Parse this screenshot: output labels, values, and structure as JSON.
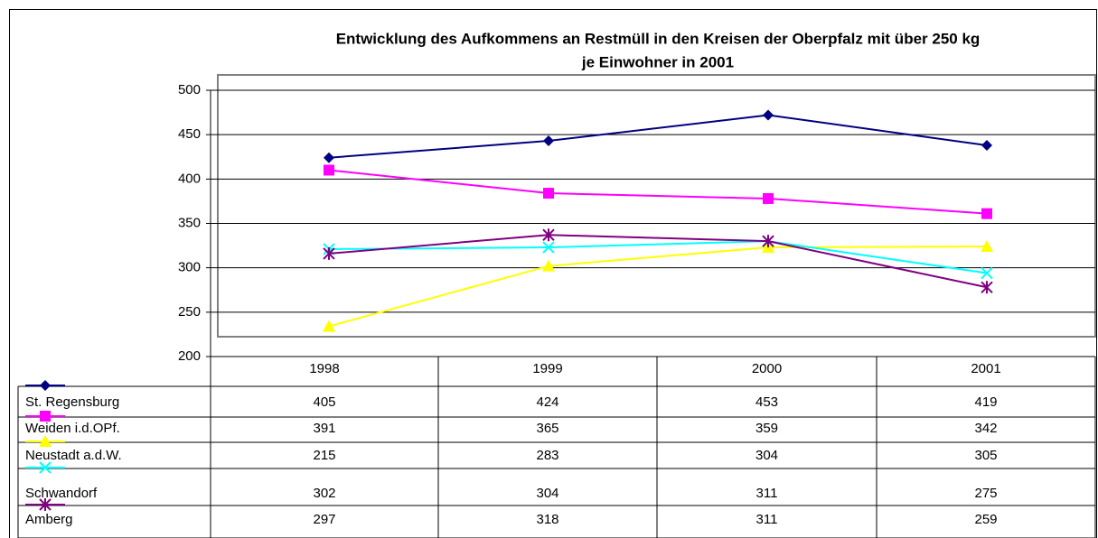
{
  "chart_data": {
    "type": "line",
    "title": [
      "Entwicklung des Aufkommens an Restmüll in den Kreisen der Oberpfalz mit über 250 kg",
      "je Einwohner in 2001"
    ],
    "categories": [
      "1998",
      "1999",
      "2000",
      "2001"
    ],
    "series": [
      {
        "name": "St. Regensburg",
        "color": "#000080",
        "marker": "diamond",
        "values": [
          405,
          424,
          453,
          419
        ]
      },
      {
        "name": "Weiden i.d.OPf.",
        "color": "#ff00ff",
        "marker": "square",
        "values": [
          391,
          365,
          359,
          342
        ]
      },
      {
        "name": "Neustadt a.d.W.",
        "color": "#ffff00",
        "marker": "triangle",
        "values": [
          215,
          283,
          304,
          305
        ]
      },
      {
        "name": "Schwandorf",
        "color": "#00ffff",
        "marker": "x",
        "values": [
          302,
          304,
          311,
          275
        ]
      },
      {
        "name": "Amberg",
        "color": "#800080",
        "marker": "star",
        "values": [
          297,
          318,
          311,
          259
        ]
      }
    ],
    "ylim": [
      200,
      500
    ],
    "yticks": [
      200,
      250,
      300,
      350,
      400,
      450,
      500
    ],
    "grid": true,
    "data_table": true
  }
}
